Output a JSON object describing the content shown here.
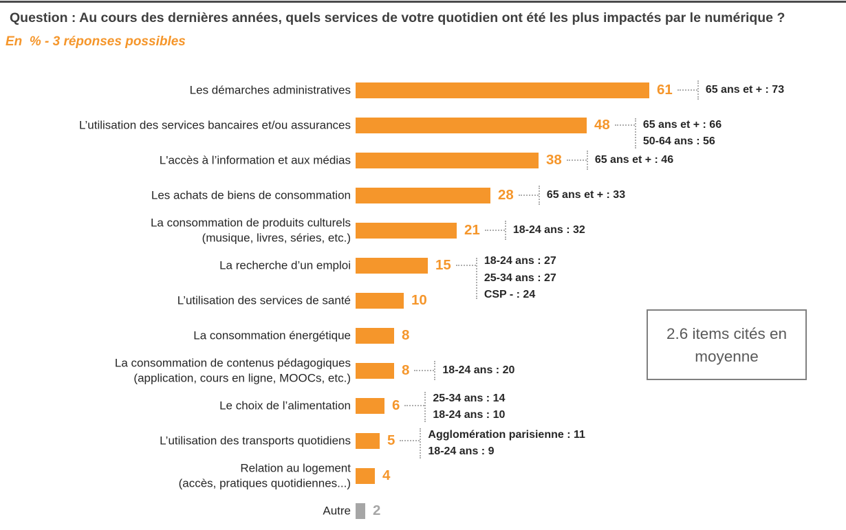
{
  "header": {
    "title": "Question : Au cours des dernières années, quels services de votre quotidien ont été les plus impactés par le numérique ?",
    "subtitle": "En  % - 3 réponses possibles"
  },
  "colors": {
    "accent_orange": "#f5962b",
    "gray_bar": "#a6a6a6",
    "gray_value": "#a6a6a6",
    "text_dark": "#262626",
    "title_gray": "#3f3f3f",
    "box_text": "#595959",
    "box_border": "#7f7f7f",
    "connector_gray": "#adadad",
    "top_rule": "#4a4a4c"
  },
  "average_box": {
    "text": "2.6 items cités en moyenne"
  },
  "chart_data": {
    "type": "bar",
    "orientation": "horizontal",
    "unit": "%",
    "title": "Question : Au cours des dernières années, quels services de votre quotidien ont été les plus impactés par le numérique ?",
    "subtitle": "En % - 3 réponses possibles",
    "xlim": [
      0,
      100
    ],
    "value_axis_hidden": true,
    "grid": false,
    "legend": false,
    "rows": [
      {
        "label": "Les démarches administratives",
        "value": 61,
        "color": "orange",
        "annotations": [
          "65 ans et + : 73"
        ]
      },
      {
        "label": "L’utilisation des services bancaires et/ou assurances",
        "value": 48,
        "color": "orange",
        "annotations": [
          "65 ans et + : 66",
          "50-64 ans : 56"
        ]
      },
      {
        "label": "L'accès à l’information et aux médias",
        "value": 38,
        "color": "orange",
        "annotations": [
          "65 ans et + : 46"
        ]
      },
      {
        "label": "Les achats de biens de consommation",
        "value": 28,
        "color": "orange",
        "annotations": [
          "65 ans et + : 33"
        ]
      },
      {
        "label": "La consommation de produits culturels\n(musique, livres, séries, etc.)",
        "value": 21,
        "color": "orange",
        "annotations": [
          "18-24 ans : 32"
        ]
      },
      {
        "label": "La recherche d’un emploi",
        "value": 15,
        "color": "orange",
        "annotations": [
          "18-24 ans : 27",
          "25-34 ans : 27",
          "CSP - : 24"
        ]
      },
      {
        "label": "L’utilisation des services de santé",
        "value": 10,
        "color": "orange",
        "annotations": []
      },
      {
        "label": "La consommation énergétique",
        "value": 8,
        "color": "orange",
        "annotations": []
      },
      {
        "label": "La consommation de contenus pédagogiques\n(application, cours en ligne, MOOCs, etc.)",
        "value": 8,
        "color": "orange",
        "annotations": [
          "18-24 ans : 20"
        ]
      },
      {
        "label": "Le choix de l’alimentation",
        "value": 6,
        "color": "orange",
        "annotations": [
          "25-34 ans : 14",
          "18-24 ans : 10"
        ]
      },
      {
        "label": "L’utilisation des transports quotidiens",
        "value": 5,
        "color": "orange",
        "annotations": [
          "Agglomération parisienne : 11",
          "18-24 ans : 9"
        ]
      },
      {
        "label": "Relation au logement\n(accès, pratiques quotidiennes...)",
        "value": 4,
        "color": "orange",
        "annotations": []
      },
      {
        "label": "Autre",
        "value": 2,
        "color": "gray",
        "annotations": []
      }
    ]
  }
}
